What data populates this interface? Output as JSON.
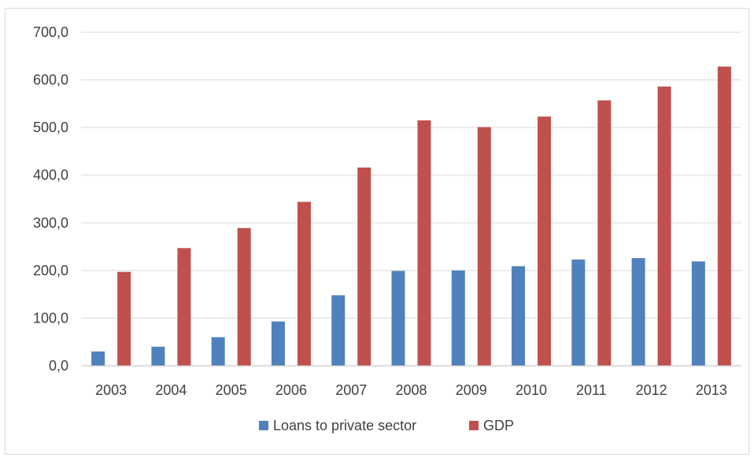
{
  "chart_data": {
    "type": "bar",
    "title": "",
    "xlabel": "",
    "ylabel": "",
    "categories": [
      "2003",
      "2004",
      "2005",
      "2006",
      "2007",
      "2008",
      "2009",
      "2010",
      "2011",
      "2012",
      "2013"
    ],
    "series": [
      {
        "name": "Loans to private sector",
        "color": "#4f81bd",
        "values": [
          30,
          40,
          60,
          93,
          148,
          199,
          200,
          209,
          223,
          226,
          219
        ]
      },
      {
        "name": "GDP",
        "color": "#c0504d",
        "values": [
          197,
          247,
          289,
          344,
          416,
          515,
          501,
          523,
          557,
          586,
          628
        ]
      }
    ],
    "ylim": [
      0,
      700
    ],
    "yticks": [
      0,
      100,
      200,
      300,
      400,
      500,
      600,
      700
    ],
    "ytick_labels": [
      "0,0",
      "100,0",
      "200,0",
      "300,0",
      "400,0",
      "500,0",
      "600,0",
      "700,0"
    ],
    "grid": true,
    "legend_position": "bottom",
    "colors": {
      "gridline": "#d9d9d9",
      "axis": "#bfbfbf",
      "text": "#404040"
    }
  }
}
